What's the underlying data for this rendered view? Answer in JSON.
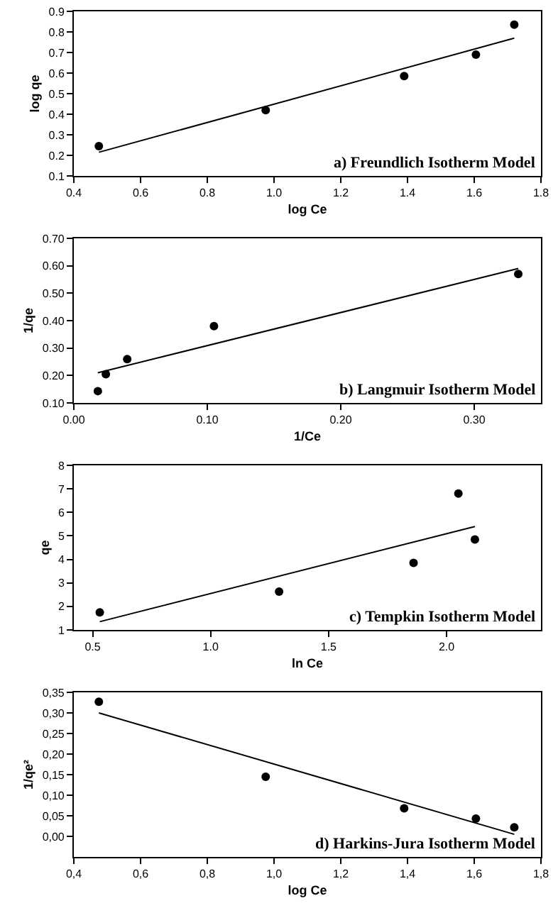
{
  "chart_data": [
    {
      "type": "scatter",
      "xlabel": "log Ce",
      "ylabel": "log qe",
      "annotations": [
        "a) Freundlich Isotherm Model"
      ],
      "xlim": [
        0.4,
        1.8
      ],
      "ylim": [
        0.1,
        0.9
      ],
      "xticks": [
        0.4,
        0.6,
        0.8,
        {
          "value": 1,
          "label": "1.0"
        },
        1.2,
        1.4,
        1.6,
        1.8
      ],
      "yticks": [
        0.1,
        0.2,
        0.3,
        0.4,
        0.5,
        0.6,
        0.7,
        0.8,
        0.9
      ],
      "grid": false,
      "series": [
        {
          "marker": "circle",
          "color": "#000000",
          "x": [
            0.475,
            0.975,
            1.39,
            1.605,
            1.72
          ],
          "values": [
            0.245,
            0.42,
            0.585,
            0.69,
            0.835
          ]
        },
        {
          "type": "line",
          "marker": "none",
          "line_style": "solid",
          "color": "#000000",
          "x": [
            0.475,
            1.72
          ],
          "values": [
            0.215,
            0.77
          ]
        }
      ]
    },
    {
      "type": "scatter",
      "xlabel": "1/Ce",
      "ylabel": "1/qe",
      "annotations": [
        "b) Langmuir Isotherm Model"
      ],
      "xlim": [
        0,
        0.35
      ],
      "ylim": [
        0.1,
        0.7
      ],
      "xticks": [
        {
          "value": 0,
          "label": "0.00"
        },
        {
          "value": 0.1,
          "label": "0.10"
        },
        {
          "value": 0.2,
          "label": "0.20"
        },
        {
          "value": 0.3,
          "label": "0.30"
        }
      ],
      "yticks": [
        {
          "value": 0.1,
          "label": "0.10"
        },
        {
          "value": 0.2,
          "label": "0.20"
        },
        {
          "value": 0.3,
          "label": "0.30"
        },
        {
          "value": 0.4,
          "label": "0.40"
        },
        {
          "value": 0.5,
          "label": "0.50"
        },
        {
          "value": 0.6,
          "label": "0.60"
        },
        {
          "value": 0.7,
          "label": "0.70"
        }
      ],
      "grid": false,
      "series": [
        {
          "marker": "circle",
          "color": "#000000",
          "x": [
            0.018,
            0.024,
            0.04,
            0.105,
            0.333
          ],
          "values": [
            0.143,
            0.205,
            0.26,
            0.38,
            0.57
          ]
        },
        {
          "type": "line",
          "marker": "none",
          "line_style": "solid",
          "color": "#000000",
          "x": [
            0.018,
            0.333
          ],
          "values": [
            0.21,
            0.59
          ]
        }
      ]
    },
    {
      "type": "scatter",
      "xlabel": "ln Ce",
      "ylabel": "qe",
      "annotations": [
        "c) Tempkin Isotherm Model"
      ],
      "xlim": [
        0.42,
        2.4
      ],
      "ylim": [
        1,
        8
      ],
      "xticks": [
        {
          "value": 0.5,
          "label": "0.5"
        },
        {
          "value": 1,
          "label": "1.0"
        },
        {
          "value": 1.5,
          "label": "1.5"
        },
        {
          "value": 2,
          "label": "2.0"
        }
      ],
      "yticks": [
        1,
        2,
        3,
        4,
        5,
        6,
        7,
        8
      ],
      "grid": false,
      "series": [
        {
          "marker": "circle",
          "color": "#000000",
          "x": [
            0.53,
            1.29,
            1.86,
            2.05,
            2.12
          ],
          "values": [
            1.75,
            2.63,
            3.85,
            6.8,
            4.85
          ]
        },
        {
          "type": "line",
          "marker": "none",
          "line_style": "solid",
          "color": "#000000",
          "x": [
            0.53,
            2.12
          ],
          "values": [
            1.35,
            5.4
          ]
        }
      ]
    },
    {
      "type": "scatter",
      "xlabel": "log Ce",
      "ylabel": "1/qe²",
      "annotations": [
        "d) Harkins-Jura Isotherm Model"
      ],
      "xlim": [
        0.4,
        1.8
      ],
      "ylim": [
        -0.05,
        0.35
      ],
      "xticks": [
        {
          "value": 0.4,
          "label": "0,4"
        },
        {
          "value": 0.6,
          "label": "0,6"
        },
        {
          "value": 0.8,
          "label": "0,8"
        },
        {
          "value": 1,
          "label": "1,0"
        },
        {
          "value": 1.2,
          "label": "1,2"
        },
        {
          "value": 1.4,
          "label": "1,4"
        },
        {
          "value": 1.6,
          "label": "1,6"
        },
        {
          "value": 1.8,
          "label": "1,8"
        }
      ],
      "yticks": [
        {
          "value": 0,
          "label": "0,00"
        },
        {
          "value": 0.05,
          "label": "0,05"
        },
        {
          "value": 0.1,
          "label": "0,10"
        },
        {
          "value": 0.15,
          "label": "0,15"
        },
        {
          "value": 0.2,
          "label": "0,20"
        },
        {
          "value": 0.25,
          "label": "0,25"
        },
        {
          "value": 0.3,
          "label": "0,30"
        },
        {
          "value": 0.35,
          "label": "0,35"
        }
      ],
      "grid": false,
      "series": [
        {
          "marker": "circle",
          "color": "#000000",
          "x": [
            0.475,
            0.975,
            1.39,
            1.605,
            1.72
          ],
          "values": [
            0.327,
            0.145,
            0.068,
            0.043,
            0.022
          ]
        },
        {
          "type": "line",
          "marker": "none",
          "line_style": "solid",
          "color": "#000000",
          "x": [
            0.475,
            1.72
          ],
          "values": [
            0.3,
            0.005
          ]
        }
      ]
    }
  ]
}
